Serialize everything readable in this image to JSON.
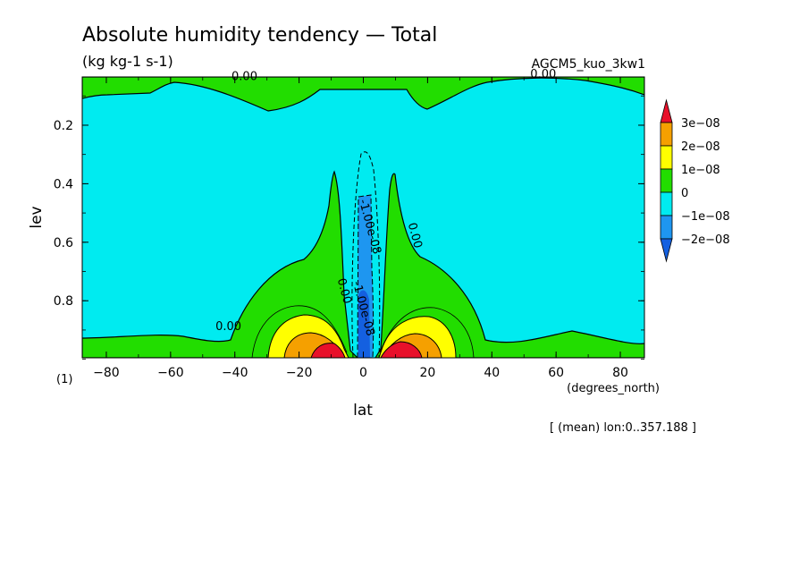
{
  "chart_data": {
    "type": "heatmap",
    "title": "Absolute humidity tendency — Total",
    "units": "(kg kg-1 s-1)",
    "run_label": "AGCM5_kuo_3kw1",
    "xlabel": "lat",
    "x_units": "(degrees_north)",
    "ylabel": "lev",
    "panel_label": "(1)",
    "footnote": "[ (mean) lon:0..357.188 ]",
    "xlim": [
      -87.5,
      87.5
    ],
    "ylim": [
      0.035,
      0.995
    ],
    "y_inverted": true,
    "x_ticks": [
      -80,
      -60,
      -40,
      -20,
      0,
      20,
      40,
      60,
      80
    ],
    "x_tick_labels": [
      "−80",
      "−60",
      "−40",
      "−20",
      "0",
      "20",
      "40",
      "60",
      "80"
    ],
    "y_ticks": [
      0.2,
      0.4,
      0.6,
      0.8
    ],
    "y_tick_labels": [
      "0.2",
      "0.4",
      "0.6",
      "0.8"
    ],
    "contour_labels": [
      {
        "text": "0.00",
        "x": -37,
        "y": 0.045
      },
      {
        "text": "0.00",
        "x": 56,
        "y": 0.038
      },
      {
        "text": "0.00",
        "x": 15,
        "y": 0.58
      },
      {
        "text": "0.00",
        "x": -7,
        "y": 0.77
      },
      {
        "text": "0.00",
        "x": -42,
        "y": 0.9
      },
      {
        "text": "-1.00e-08",
        "x": 1,
        "y": 0.55
      },
      {
        "text": "-1.00e-08",
        "x": -1,
        "y": 0.83
      }
    ],
    "legend": {
      "placement": "right",
      "labels": [
        "3e−08",
        "2e−08",
        "1e−08",
        "0",
        "−1e−08",
        "−2e−08"
      ],
      "colors": [
        "#e8102a",
        "#f5a000",
        "#ffff00",
        "#22dd00",
        "#00ebf0",
        "#1e96f0",
        "#1460e0"
      ]
    },
    "colors": {
      "positive_small": "#22dd00",
      "negative_small": "#00ebf0",
      "band_1e08": "#ffff00",
      "band_2e08": "#f5a000",
      "band_3e08": "#e8102a",
      "band_neg1e08": "#1e96f0",
      "band_neg2e08": "#1460e0"
    }
  }
}
